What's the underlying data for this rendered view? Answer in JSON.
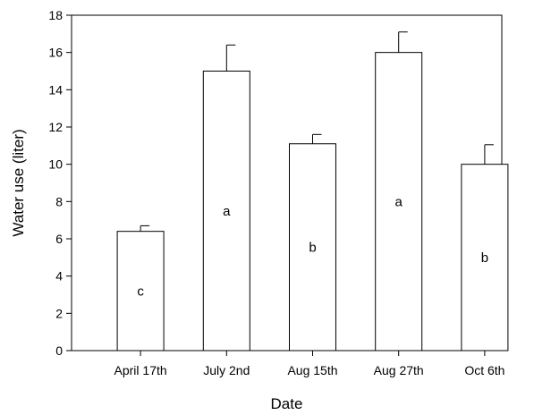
{
  "chart_data": {
    "type": "bar",
    "categories": [
      "April 17th",
      "July 2nd",
      "Aug 15th",
      "Aug 27th",
      "Oct 6th"
    ],
    "values": [
      6.4,
      15.0,
      11.1,
      16.0,
      10.0
    ],
    "error_upper": [
      6.7,
      16.4,
      11.6,
      17.1,
      11.05
    ],
    "group_letters": [
      "c",
      "a",
      "b",
      "a",
      "b"
    ],
    "xlabel": "Date",
    "ylabel": "Water use (liter)",
    "ylim": [
      0,
      18
    ],
    "yticks": [
      "0",
      "2",
      "4",
      "6",
      "8",
      "10",
      "12",
      "14",
      "16",
      "18"
    ],
    "grid": false,
    "colors": {
      "bar_fill": "#ffffff",
      "bar_stroke": "#000000"
    }
  }
}
